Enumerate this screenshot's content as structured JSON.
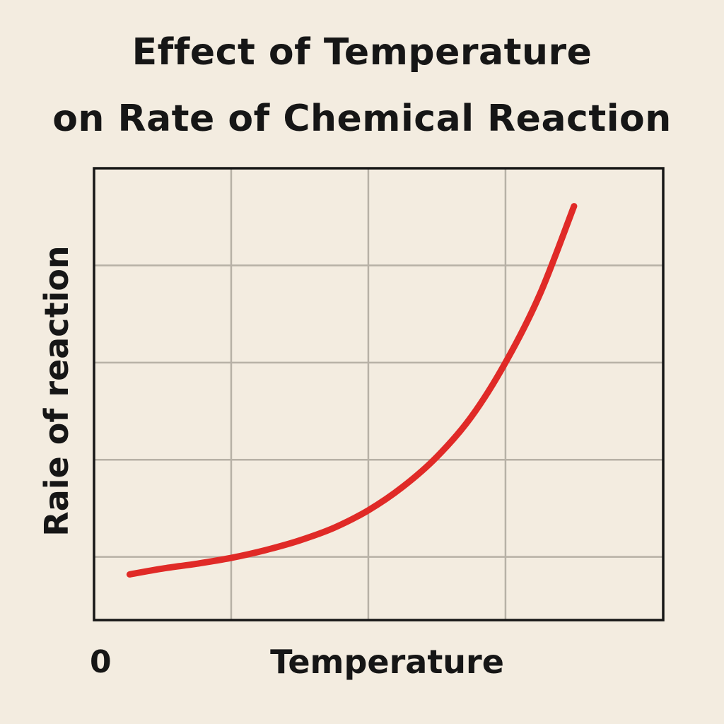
{
  "chart_data": {
    "type": "line",
    "title_lines": [
      "Effect of Temperature",
      "on Rate of Chemical Reaction"
    ],
    "xlabel": "Temperature",
    "ylabel": "Raie of reaction",
    "x_tick_labels": [
      "0"
    ],
    "xlim": [
      0,
      4.15
    ],
    "ylim": [
      0,
      4.65
    ],
    "grid": true,
    "grid_x": [
      1,
      2,
      3
    ],
    "grid_y": [
      0.65,
      1.65,
      2.65,
      3.65
    ],
    "series": [
      {
        "color": "#e02a27",
        "x": [
          0.26,
          0.5,
          0.75,
          1.0,
          1.25,
          1.5,
          1.75,
          2.0,
          2.25,
          2.5,
          2.75,
          3.0,
          3.25,
          3.5
        ],
        "y": [
          0.47,
          0.53,
          0.58,
          0.64,
          0.72,
          0.82,
          0.95,
          1.13,
          1.37,
          1.68,
          2.09,
          2.65,
          3.35,
          4.26
        ]
      }
    ]
  }
}
